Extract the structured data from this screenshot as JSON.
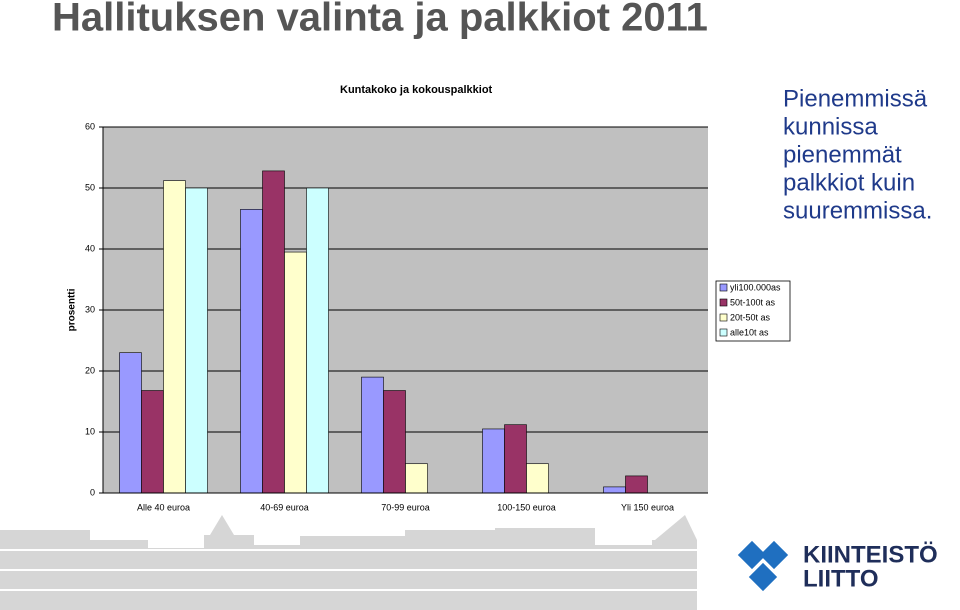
{
  "slide": {
    "title": "Hallituksen valinta ja palkkiot 2011",
    "note_lines": [
      "Pienemmissä",
      "kunnissa",
      "pienemmät",
      "palkkiot kuin",
      "suuremmissa."
    ],
    "logo_lines": [
      "KIINTEISTÖ",
      "LIITTO"
    ]
  },
  "chart_data": {
    "type": "bar",
    "title": "Kuntakoko ja kokouspalkkiot",
    "y_label": "prosentti",
    "categories": [
      "Alle 40 euroa",
      "40-69 euroa",
      "70-99 euroa",
      "100-150 euroa",
      "Yli 150 euroa"
    ],
    "series": [
      {
        "name": "yli100.000as",
        "color": "#9999ff",
        "values": [
          23,
          46.5,
          19,
          10.5,
          1
        ]
      },
      {
        "name": "50t-100t as",
        "color": "#993366",
        "values": [
          16.8,
          52.8,
          16.8,
          11.2,
          2.8
        ]
      },
      {
        "name": "20t-50t as",
        "color": "#ffffcc",
        "values": [
          51.2,
          39.5,
          4.8,
          4.8,
          0
        ]
      },
      {
        "name": "alle10t as",
        "color": "#ccffff",
        "values": [
          50,
          50,
          0,
          0,
          0
        ]
      }
    ],
    "ylim": [
      0,
      60
    ],
    "yticks": [
      0,
      10,
      20,
      30,
      40,
      50,
      60
    ],
    "grid": true,
    "legend": "right"
  }
}
